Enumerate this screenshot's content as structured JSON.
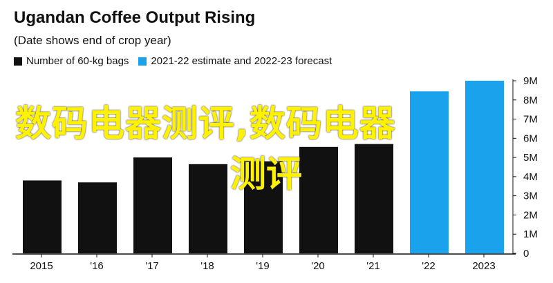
{
  "chart_data": {
    "type": "bar",
    "title": "Ugandan Coffee Output Rising",
    "subtitle": "(Date shows end of crop year)",
    "categories": [
      "2015",
      "'16",
      "'17",
      "'18",
      "'19",
      "'20",
      "'21",
      "'22",
      "2023"
    ],
    "values": [
      3.8,
      3.7,
      5.0,
      4.65,
      4.8,
      5.55,
      5.7,
      8.45,
      9.0
    ],
    "series": [
      {
        "name": "Number of 60-kg bags",
        "color": "#111111",
        "values": [
          3.8,
          3.7,
          5.0,
          4.65,
          4.8,
          5.55,
          5.7,
          null,
          null
        ]
      },
      {
        "name": "2021-22 estimate and 2022-23 forecast",
        "color": "#1aa3ec",
        "values": [
          null,
          null,
          null,
          null,
          null,
          null,
          null,
          8.45,
          9.0
        ]
      }
    ],
    "ylim": [
      0,
      9
    ],
    "yticks": [
      "0",
      "1M",
      "2M",
      "3M",
      "4M",
      "5M",
      "6M",
      "7M",
      "8M",
      "9M"
    ],
    "grid": false,
    "legend_position": "top-left",
    "axis_position": "right",
    "xlabel": "",
    "ylabel": ""
  },
  "watermark": {
    "line1": "数码电器测评,数码电器",
    "line2": "测评",
    "color": "#fff200"
  }
}
